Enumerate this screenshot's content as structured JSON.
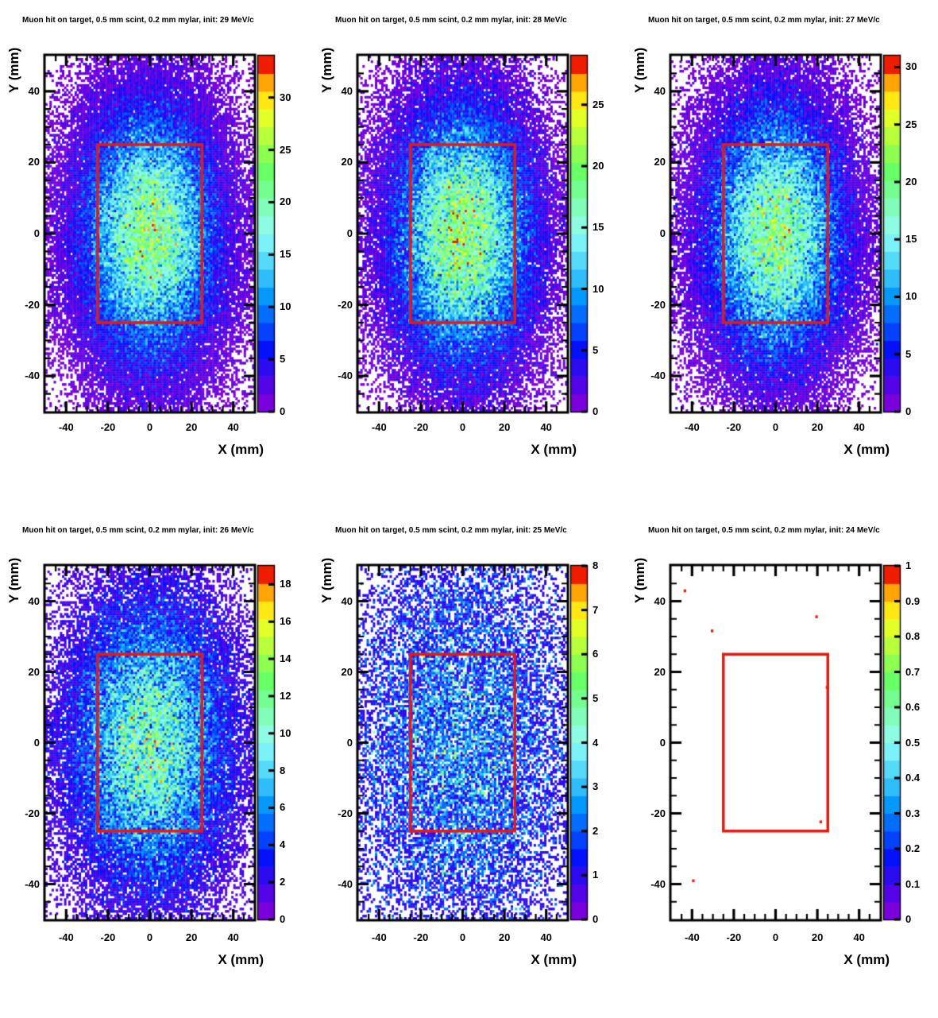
{
  "figure": {
    "background": "#ffffff",
    "frame_color": "#000000",
    "text_color": "#000000"
  },
  "axes": {
    "x_label": "X (mm)",
    "y_label": "Y (mm)",
    "x_range": [
      -50,
      50
    ],
    "y_range": [
      -50,
      50
    ],
    "x_ticks": [
      -40,
      -20,
      0,
      20,
      40
    ],
    "y_ticks": [
      40,
      20,
      0,
      -20,
      -40
    ],
    "minor_tick_step": 5
  },
  "target_rect": {
    "x_min": -25,
    "x_max": 25,
    "y_min": -25,
    "y_max": 25,
    "color": "#e51a10"
  },
  "palette": {
    "zero_color": "#ffffff",
    "colors": [
      "#7a00dd",
      "#5305e7",
      "#2c0bf1",
      "#0511fb",
      "#0542fd",
      "#056dfd",
      "#0598fd",
      "#2fbdfb",
      "#55daf9",
      "#7bf2f7",
      "#8dfce2",
      "#81fdb9",
      "#75fe90",
      "#69ff67",
      "#8cff50",
      "#b8ff3c",
      "#e3ff28",
      "#ffe714",
      "#ffa505",
      "#ef1d00"
    ]
  },
  "chart_data": [
    {
      "type": "heatmap",
      "title": "Muon hit on target, 0.5 mm scint, 0.2 mm mylar, init: 29 MeV/c",
      "momentum": "29 MeV/c",
      "xlabel": "X (mm)",
      "ylabel": "Y (mm)",
      "xlim": [
        -50,
        50
      ],
      "ylim": [
        -50,
        50
      ],
      "z_max": 34,
      "colorbar_ticks": [
        0,
        5,
        10,
        15,
        20,
        25,
        30
      ],
      "overlay_rect": [
        -25,
        25,
        -25,
        25
      ],
      "distribution": {
        "model": "gaussian_poisson",
        "center": [
          0,
          0
        ],
        "sigma_x": 20,
        "sigma_y": 22,
        "peak_mean": 22,
        "seed": 11
      }
    },
    {
      "type": "heatmap",
      "title": "Muon hit on target, 0.5 mm scint, 0.2 mm mylar, init: 28 MeV/c",
      "momentum": "28 MeV/c",
      "xlabel": "X (mm)",
      "ylabel": "Y (mm)",
      "xlim": [
        -50,
        50
      ],
      "ylim": [
        -50,
        50
      ],
      "z_max": 29,
      "colorbar_ticks": [
        0,
        5,
        10,
        15,
        20,
        25
      ],
      "overlay_rect": [
        -25,
        25,
        -25,
        25
      ],
      "distribution": {
        "model": "gaussian_poisson",
        "center": [
          0,
          0
        ],
        "sigma_x": 20,
        "sigma_y": 22,
        "peak_mean": 20,
        "seed": 22
      }
    },
    {
      "type": "heatmap",
      "title": "Muon hit on target, 0.5 mm scint, 0.2 mm mylar, init: 27 MeV/c",
      "momentum": "27 MeV/c",
      "xlabel": "X (mm)",
      "ylabel": "Y (mm)",
      "xlim": [
        -50,
        50
      ],
      "ylim": [
        -50,
        50
      ],
      "z_max": 31,
      "colorbar_ticks": [
        0,
        5,
        10,
        15,
        20,
        25,
        30
      ],
      "overlay_rect": [
        -25,
        25,
        -25,
        25
      ],
      "distribution": {
        "model": "gaussian_poisson",
        "center": [
          0,
          0
        ],
        "sigma_x": 20,
        "sigma_y": 22,
        "peak_mean": 20,
        "seed": 33
      }
    },
    {
      "type": "heatmap",
      "title": "Muon hit on target, 0.5 mm scint, 0.2 mm mylar, init: 26 MeV/c",
      "momentum": "26 MeV/c",
      "xlabel": "X (mm)",
      "ylabel": "Y (mm)",
      "xlim": [
        -50,
        50
      ],
      "ylim": [
        -50,
        50
      ],
      "z_max": 19,
      "colorbar_ticks": [
        0,
        2,
        4,
        6,
        8,
        10,
        12,
        14,
        16,
        18
      ],
      "overlay_rect": [
        -25,
        25,
        -25,
        25
      ],
      "distribution": {
        "model": "gaussian_poisson",
        "center": [
          0,
          0
        ],
        "sigma_x": 22,
        "sigma_y": 24,
        "peak_mean": 11,
        "seed": 44
      }
    },
    {
      "type": "heatmap",
      "title": "Muon hit on target, 0.5 mm scint, 0.2 mm mylar, init: 25 MeV/c",
      "momentum": "25 MeV/c",
      "xlabel": "X (mm)",
      "ylabel": "Y (mm)",
      "xlim": [
        -50,
        50
      ],
      "ylim": [
        -50,
        50
      ],
      "z_max": 8,
      "colorbar_ticks": [
        0,
        1,
        2,
        3,
        4,
        5,
        6,
        7,
        8
      ],
      "overlay_rect": [
        -25,
        25,
        -25,
        25
      ],
      "distribution": {
        "model": "gaussian_poisson",
        "center": [
          0,
          0
        ],
        "sigma_x": 30,
        "sigma_y": 32,
        "peak_mean": 2.2,
        "seed": 55
      }
    },
    {
      "type": "heatmap",
      "title": "Muon hit on target, 0.5 mm scint, 0.2 mm mylar, init: 24 MeV/c",
      "momentum": "24 MeV/c",
      "xlabel": "X (mm)",
      "ylabel": "Y (mm)",
      "xlim": [
        -50,
        50
      ],
      "ylim": [
        -50,
        50
      ],
      "z_max": 1,
      "colorbar_ticks": [
        0,
        0.1,
        0.2,
        0.3,
        0.4,
        0.5,
        0.6,
        0.7,
        0.8,
        0.9,
        1
      ],
      "overlay_rect": [
        -25,
        25,
        -25,
        25
      ],
      "distribution": {
        "model": "points",
        "points": [
          {
            "x": -44,
            "y": 43,
            "v": 1
          },
          {
            "x": 19,
            "y": 36,
            "v": 1
          },
          {
            "x": -31,
            "y": 32,
            "v": 1
          },
          {
            "x": 24,
            "y": 16,
            "v": 1
          },
          {
            "x": 21,
            "y": -22,
            "v": 1
          },
          {
            "x": -40,
            "y": -39,
            "v": 1
          }
        ]
      }
    }
  ]
}
